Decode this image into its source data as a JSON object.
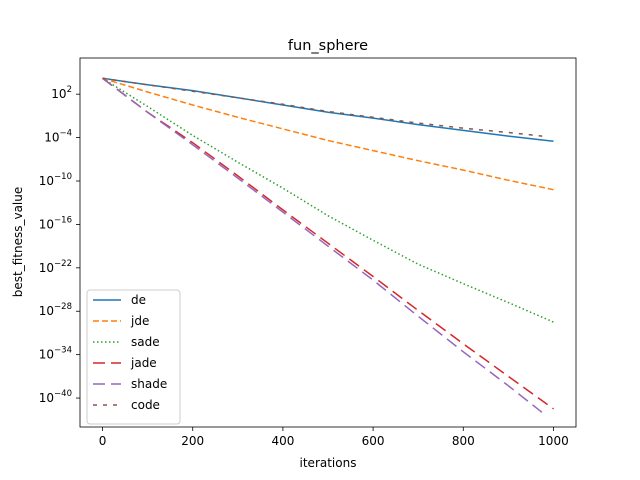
{
  "chart_data": {
    "type": "line",
    "title": "fun_sphere",
    "xlabel": "iterations",
    "ylabel": "best_fitness_value",
    "yscale": "log",
    "xlim": [
      -50,
      1050
    ],
    "ylim_exp": [
      -44,
      7
    ],
    "xticks": [
      0,
      200,
      400,
      600,
      800,
      1000
    ],
    "yticks_exp": [
      2,
      -4,
      -10,
      -16,
      -22,
      -28,
      -34,
      -40
    ],
    "grid": false,
    "legend_position": "lower-left",
    "series": [
      {
        "name": "de",
        "color": "#1f77b4",
        "style": "solid",
        "x": [
          0,
          100,
          200,
          300,
          400,
          500,
          600,
          700,
          800,
          900,
          1000
        ],
        "log10_y": [
          4.2,
          3.3,
          2.5,
          1.5,
          0.5,
          -0.5,
          -1.3,
          -2.2,
          -3.0,
          -3.8,
          -4.5
        ]
      },
      {
        "name": "jde",
        "color": "#ff7f0e",
        "style": "dashed",
        "x": [
          0,
          100,
          200,
          300,
          400,
          500,
          600,
          700,
          800,
          900,
          1000
        ],
        "log10_y": [
          4.2,
          2.3,
          0.5,
          -1.2,
          -2.8,
          -4.4,
          -5.8,
          -7.2,
          -8.5,
          -9.9,
          -11.2
        ]
      },
      {
        "name": "sade",
        "color": "#2ca02c",
        "style": "dotted",
        "x": [
          0,
          100,
          200,
          300,
          400,
          500,
          600,
          700,
          800,
          900,
          1000
        ],
        "log10_y": [
          4.2,
          0.3,
          -3.7,
          -7.4,
          -11.0,
          -14.8,
          -18.2,
          -21.5,
          -24.2,
          -26.8,
          -29.5
        ]
      },
      {
        "name": "jade",
        "color": "#d62728",
        "style": "longdash",
        "x": [
          0,
          100,
          200,
          300,
          400,
          500,
          600,
          700,
          800,
          900,
          1000
        ],
        "log10_y": [
          4.2,
          -0.5,
          -4.7,
          -9.3,
          -14.0,
          -18.6,
          -23.2,
          -27.9,
          -32.5,
          -37.0,
          -41.5
        ]
      },
      {
        "name": "shade",
        "color": "#9467bd",
        "style": "dashdash",
        "x": [
          0,
          100,
          200,
          300,
          400,
          500,
          600,
          700,
          800,
          900,
          975
        ],
        "log10_y": [
          4.2,
          -0.5,
          -5.0,
          -9.6,
          -14.3,
          -19.0,
          -23.7,
          -28.7,
          -33.6,
          -38.3,
          -42.0
        ]
      },
      {
        "name": "code",
        "color": "#8c564b",
        "style": "shortdash",
        "x": [
          0,
          100,
          200,
          300,
          400,
          500,
          600,
          700,
          800,
          900,
          975
        ],
        "log10_y": [
          4.2,
          3.3,
          2.4,
          1.5,
          0.6,
          -0.4,
          -1.2,
          -2.0,
          -2.7,
          -3.3,
          -3.8
        ]
      }
    ]
  }
}
